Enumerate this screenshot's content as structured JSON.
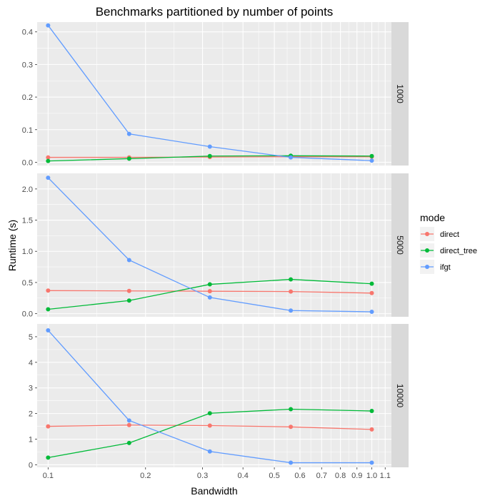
{
  "chart_data": {
    "type": "line",
    "title": "Benchmarks partitioned by number of points",
    "xlabel": "Bandwidth",
    "ylabel": "Runtime (s)",
    "x_scale": "log",
    "xlim": [
      0.0925,
      1.15
    ],
    "x_ticks": [
      0.1,
      0.2,
      0.3,
      0.4,
      0.5,
      0.6,
      0.7,
      0.8,
      0.9,
      1.0,
      1.1
    ],
    "x_tick_labels": [
      "0.1",
      "0.2",
      "0.3",
      "0.4",
      "0.5",
      "0.6",
      "0.7",
      "0.8",
      "0.9",
      "1.0",
      "1.1"
    ],
    "x": [
      0.1,
      0.178,
      0.316,
      0.562,
      1.0
    ],
    "grid": true,
    "legend": {
      "title": "mode",
      "position": "right",
      "entries": [
        {
          "label": "direct",
          "color": "#F8766D"
        },
        {
          "label": "direct_tree",
          "color": "#00BA38"
        },
        {
          "label": "ifgt",
          "color": "#619CFF"
        }
      ]
    },
    "panels": [
      {
        "strip": "1000",
        "ylim": [
          -0.01,
          0.43
        ],
        "y_ticks": [
          0.0,
          0.1,
          0.2,
          0.3,
          0.4
        ],
        "y_tick_labels": [
          "0.0",
          "0.1",
          "0.2",
          "0.3",
          "0.4"
        ],
        "series": [
          {
            "name": "direct",
            "values": [
              0.015,
              0.015,
              0.016,
              0.017,
              0.017
            ]
          },
          {
            "name": "direct_tree",
            "values": [
              0.004,
              0.011,
              0.019,
              0.02,
              0.019
            ]
          },
          {
            "name": "ifgt",
            "values": [
              0.42,
              0.087,
              0.048,
              0.015,
              0.005
            ]
          }
        ]
      },
      {
        "strip": "5000",
        "ylim": [
          -0.05,
          2.25
        ],
        "y_ticks": [
          0.0,
          0.5,
          1.0,
          1.5,
          2.0
        ],
        "y_tick_labels": [
          "0.0",
          "0.5",
          "1.0",
          "1.5",
          "2.0"
        ],
        "series": [
          {
            "name": "direct",
            "values": [
              0.37,
              0.365,
              0.36,
              0.355,
              0.33
            ]
          },
          {
            "name": "direct_tree",
            "values": [
              0.07,
              0.21,
              0.47,
              0.55,
              0.48
            ]
          },
          {
            "name": "ifgt",
            "values": [
              2.18,
              0.86,
              0.26,
              0.05,
              0.03
            ]
          }
        ]
      },
      {
        "strip": "10000",
        "ylim": [
          -0.1,
          5.5
        ],
        "y_ticks": [
          0,
          1,
          2,
          3,
          4,
          5
        ],
        "y_tick_labels": [
          "0",
          "1",
          "2",
          "3",
          "4",
          "5"
        ],
        "series": [
          {
            "name": "direct",
            "values": [
              1.5,
              1.55,
              1.53,
              1.48,
              1.38
            ]
          },
          {
            "name": "direct_tree",
            "values": [
              0.28,
              0.85,
              2.01,
              2.17,
              2.1
            ]
          },
          {
            "name": "ifgt",
            "values": [
              5.25,
              1.73,
              0.52,
              0.08,
              0.08
            ]
          }
        ]
      }
    ]
  }
}
